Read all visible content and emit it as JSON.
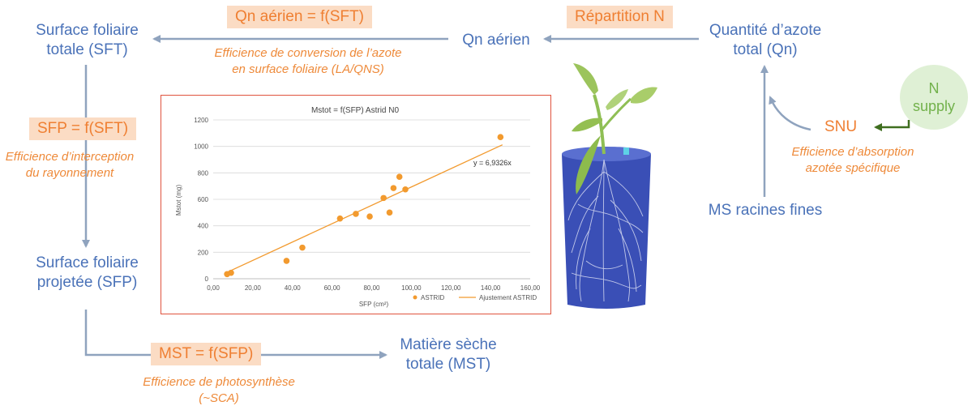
{
  "nodes": {
    "sft_line1": "Surface foliaire",
    "sft_line2": "totale (SFT)",
    "qn_aerien": "Qn aérien",
    "qn_line1": "Quantité d’azote",
    "qn_line2": "total (Qn)",
    "sfp_line1": "Surface foliaire",
    "sfp_line2": "projetée (SFP)",
    "mst_line1": "Matière sèche",
    "mst_line2": "totale (MST)",
    "ms_racines": "MS racines fines",
    "snu": "SNU",
    "n_supply_line1": "N",
    "n_supply_line2": "supply"
  },
  "equations": {
    "qn_sft": "Qn aérien = f(SFT)",
    "repartition": "Répartition N",
    "sfp_sft": "SFP = f(SFT)",
    "mst_sfp": "MST = f(SFP)"
  },
  "efficiencies": {
    "conversion_line1": "Efficience de conversion de l’azote",
    "conversion_line2": "en surface foliaire (LA/QNS)",
    "interception_line1": "Efficience d’interception",
    "interception_line2": "du rayonnement",
    "absorption_line1": "Efficience d’absorption",
    "absorption_line2": "azotée spécifique",
    "photosynthese_line1": "Efficience de photosynthèse",
    "photosynthese_line2": "(~SCA)"
  },
  "colors": {
    "node_blue": "#4a72b8",
    "orange_text": "#ef7f32",
    "box_fill": "#fbdcc4",
    "arrow_gray": "#8fa3be",
    "green": "#72b14b",
    "dark_green": "#3f6e1f",
    "chart_orange": "#f29a2e"
  },
  "chart_data": {
    "type": "scatter",
    "title": "Mstot = f(SFP) Astrid N0",
    "xlabel": "SFP (cm²)",
    "ylabel": "Mstot (mg)",
    "xlim": [
      0,
      160
    ],
    "ylim": [
      0,
      1200
    ],
    "x_ticks": [
      "0,00",
      "20,00",
      "40,00",
      "60,00",
      "80,00",
      "100,00",
      "120,00",
      "140,00",
      "160,00"
    ],
    "y_ticks": [
      "0",
      "200",
      "400",
      "600",
      "800",
      "1000",
      "1200"
    ],
    "grid": true,
    "legend_position": "bottom",
    "annotation": "y = 6,9326x",
    "series": [
      {
        "name": "ASTRID",
        "marker": "circle",
        "points": [
          [
            7,
            35
          ],
          [
            9,
            45
          ],
          [
            37,
            135
          ],
          [
            45,
            235
          ],
          [
            64,
            455
          ],
          [
            72,
            490
          ],
          [
            79,
            470
          ],
          [
            86,
            610
          ],
          [
            89,
            500
          ],
          [
            91,
            685
          ],
          [
            94,
            770
          ],
          [
            97,
            675
          ],
          [
            145,
            1070
          ]
        ]
      },
      {
        "name": "Ajustement ASTRID",
        "type": "line",
        "slope": 6.9326,
        "x_range": [
          7,
          146
        ]
      }
    ]
  }
}
